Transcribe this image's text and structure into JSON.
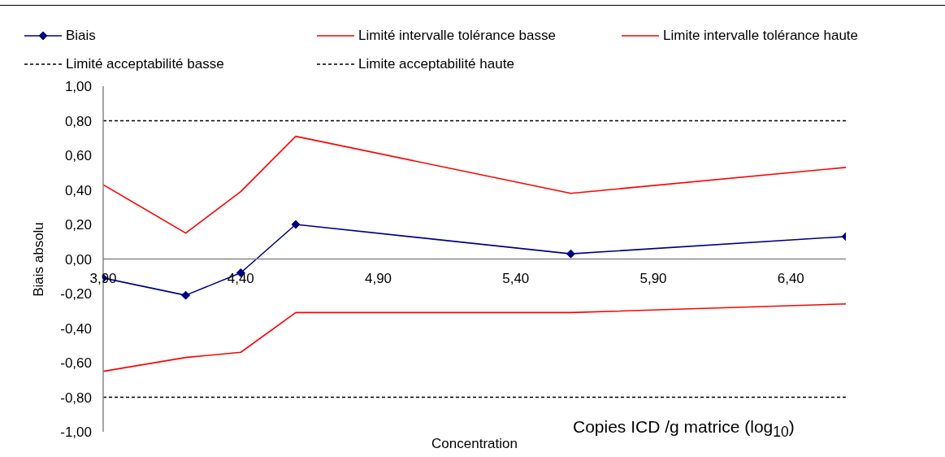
{
  "chart_data": {
    "type": "line",
    "xlabel": "Concentration",
    "ylabel": "Biais absolu",
    "annotations": [
      "Copies ICD /g matrice (log$_{10}$)"
    ],
    "x": [
      3.9,
      4.2,
      4.4,
      4.6,
      5.6,
      6.6
    ],
    "series": [
      {
        "name": "Biais",
        "color": "#000080",
        "values": [
          -0.11,
          -0.21,
          -0.08,
          0.2,
          0.03,
          0.13
        ],
        "marker": "diamond",
        "line_style": "solid"
      },
      {
        "name": "Limité intervalle tolérance basse",
        "color": "#ff0000",
        "values": [
          -0.65,
          -0.57,
          -0.54,
          -0.31,
          -0.31,
          -0.26
        ],
        "marker": "none",
        "line_style": "solid"
      },
      {
        "name": "Limite intervalle tolérance haute",
        "color": "#ff0000",
        "values": [
          0.43,
          0.15,
          0.39,
          0.71,
          0.38,
          0.53
        ],
        "marker": "none",
        "line_style": "solid"
      },
      {
        "name": "Limité acceptabilité basse",
        "color": "#000000",
        "values": [
          -0.8,
          -0.8,
          -0.8,
          -0.8,
          -0.8,
          -0.8
        ],
        "marker": "none",
        "line_style": "dashed"
      },
      {
        "name": "Limite acceptabilité haute",
        "color": "#000000",
        "values": [
          0.8,
          0.8,
          0.8,
          0.8,
          0.8,
          0.8
        ],
        "marker": "none",
        "line_style": "dashed"
      }
    ],
    "xlim": [
      3.9,
      6.6
    ],
    "xticks": [
      {
        "value": 3.9,
        "label": "3,90"
      },
      {
        "value": 4.4,
        "label": "4,40"
      },
      {
        "value": 4.9,
        "label": "4,90"
      },
      {
        "value": 5.4,
        "label": "5,40"
      },
      {
        "value": 5.9,
        "label": "5,90"
      },
      {
        "value": 6.4,
        "label": "6,40"
      }
    ],
    "ylim": [
      -1,
      1
    ],
    "yticks": [
      {
        "value": 1,
        "label": "1,00"
      },
      {
        "value": 0.8,
        "label": "0,80"
      },
      {
        "value": 0.6,
        "label": "0,60"
      },
      {
        "value": 0.4,
        "label": "0,40"
      },
      {
        "value": 0.2,
        "label": "0,20"
      },
      {
        "value": 0,
        "label": "0,00"
      },
      {
        "value": -0.2,
        "label": "-0,20"
      },
      {
        "value": -0.4,
        "label": "-0,40"
      },
      {
        "value": -0.6,
        "label": "-0,60"
      },
      {
        "value": -0.8,
        "label": "-0,80"
      },
      {
        "value": -1,
        "label": "-1,00"
      }
    ],
    "legend": "top"
  }
}
